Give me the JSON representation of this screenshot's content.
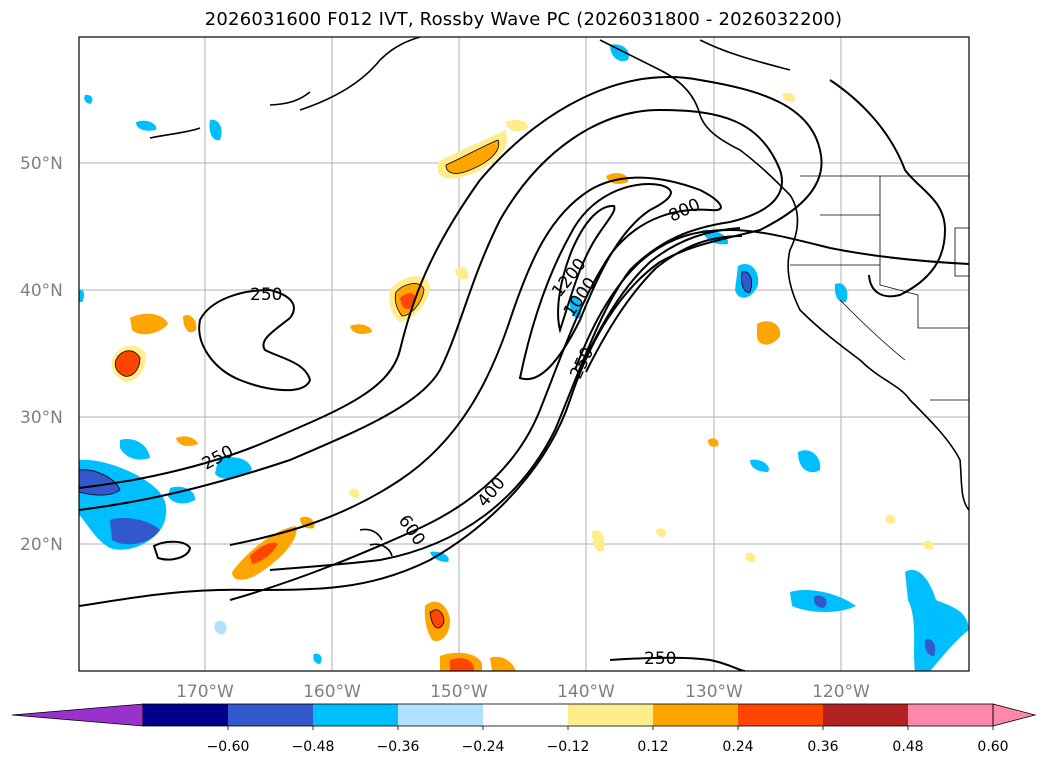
{
  "title": "2026031600 F012 IVT, Rossby Wave PC (2026031800 - 2026032200)",
  "lat_labels": [
    "50°N",
    "40°N",
    "30°N",
    "20°N"
  ],
  "lon_labels": [
    "170°W",
    "160°W",
    "150°W",
    "140°W",
    "130°W",
    "120°W"
  ],
  "contour_labels": [
    "250",
    "250",
    "600",
    "400",
    "800",
    "1200",
    "1000",
    "250",
    "250"
  ],
  "colorbar": {
    "ticks": [
      "−0.60",
      "−0.48",
      "−0.36",
      "−0.24",
      "−0.12",
      "0.12",
      "0.24",
      "0.36",
      "0.48",
      "0.60"
    ],
    "colors": [
      "#9932cc",
      "#00008b",
      "#3358cc",
      "#00bfff",
      "#b0e2ff",
      "#ffffff",
      "#ffec8b",
      "#ffa500",
      "#ff4500",
      "#b22222",
      "#ff88aa",
      "#ff88aa"
    ]
  }
}
